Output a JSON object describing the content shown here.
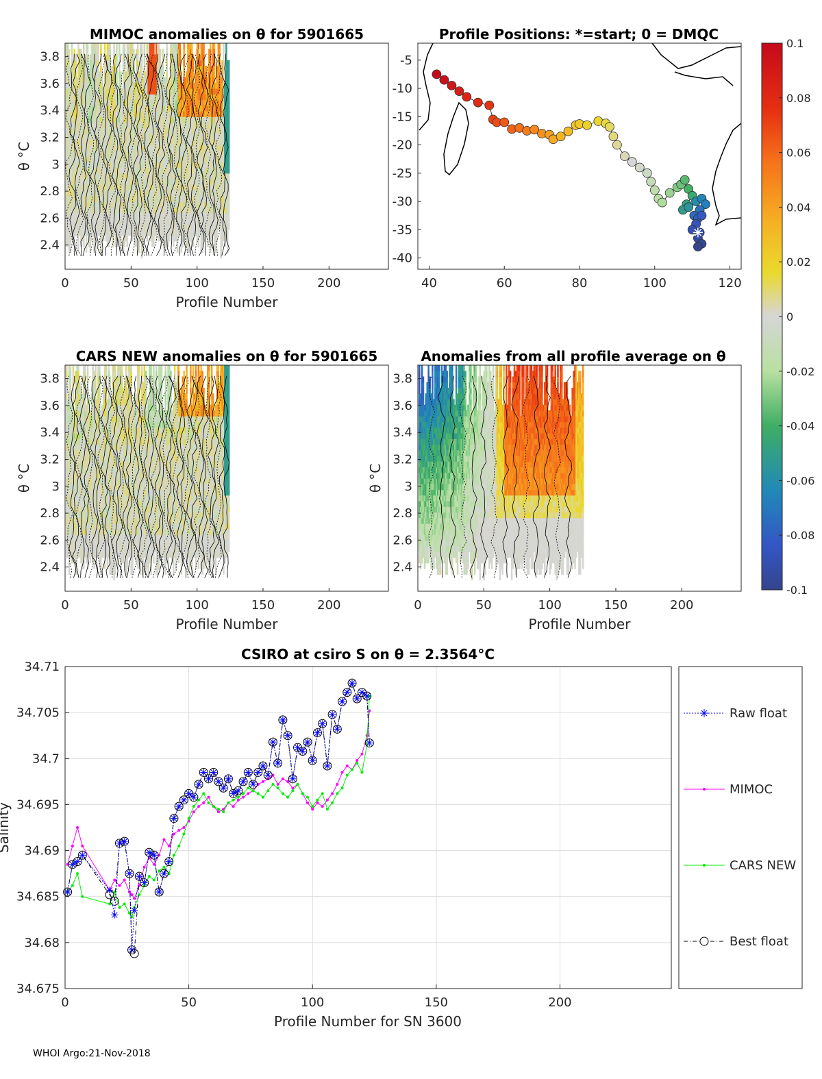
{
  "footer": "WHOI Argo:21-Nov-2018",
  "panels": {
    "mimoc": {
      "title": "MIMOC anomalies on θ  for 5901665",
      "ylabel": "θ °C",
      "xlabel": "Profile Number"
    },
    "positions": {
      "title": "Profile Positions: *=start; 0 = DMQC"
    },
    "cars": {
      "title": "CARS NEW anomalies on θ for 5901665",
      "ylabel": "θ °C",
      "xlabel": "Profile Number"
    },
    "avg": {
      "title": "Anomalies from all profile average on θ",
      "ylabel": "θ °C",
      "xlabel": "Profile Number"
    },
    "salinity": {
      "title": "CSIRO at csiro S on θ = 2.3564°C",
      "xlabel": "Profile Number for SN 3600",
      "ylabel": "Salinity"
    }
  },
  "colorbar": {
    "ticks": [
      "0.1",
      "0.08",
      "0.06",
      "0.04",
      "0.02",
      "0",
      "-0.02",
      "-0.04",
      "-0.06",
      "-0.08",
      "-0.1"
    ],
    "range": [
      -0.1,
      0.1
    ]
  },
  "chart_data": [
    {
      "type": "heatmap",
      "title": "MIMOC anomalies on θ  for 5901665",
      "xlabel": "Profile Number",
      "ylabel": "θ °C",
      "xlim": [
        0,
        245
      ],
      "ylim": [
        2.22,
        3.9
      ],
      "xticks": [
        "0",
        "50",
        "100",
        "150",
        "200"
      ],
      "yticks": [
        "2.4",
        "2.6",
        "2.8",
        "3",
        "3.2",
        "3.4",
        "3.6",
        "3.8"
      ]
    },
    {
      "type": "scatter",
      "title": "Profile Positions: *=start; 0 = DMQC",
      "xlim": [
        37,
        123
      ],
      "ylim": [
        -42,
        -2
      ],
      "xticks": [
        "40",
        "60",
        "80",
        "100",
        "120"
      ],
      "yticks": [
        "-5",
        "-10",
        "-15",
        "-20",
        "-25",
        "-30",
        "-35",
        "-40"
      ],
      "start": [
        111.5,
        -35.5
      ],
      "track": [
        [
          42,
          -7.5
        ],
        [
          44,
          -8.5
        ],
        [
          46,
          -9.5
        ],
        [
          48,
          -10.5
        ],
        [
          50,
          -11.5
        ],
        [
          53,
          -12.5
        ],
        [
          56,
          -13
        ],
        [
          57,
          -15.5
        ],
        [
          58,
          -16
        ],
        [
          60,
          -16
        ],
        [
          62,
          -17.2
        ],
        [
          64,
          -17
        ],
        [
          66,
          -17.5
        ],
        [
          68,
          -17.3
        ],
        [
          70,
          -18
        ],
        [
          72,
          -18.2
        ],
        [
          73,
          -19
        ],
        [
          75,
          -18.5
        ],
        [
          77,
          -17.6
        ],
        [
          79,
          -16.5
        ],
        [
          80,
          -16.3
        ],
        [
          82,
          -16.5
        ],
        [
          85,
          -15.8
        ],
        [
          87,
          -16.2
        ],
        [
          88,
          -16.8
        ],
        [
          89,
          -18.5
        ],
        [
          90,
          -20
        ],
        [
          92,
          -22
        ],
        [
          94,
          -23
        ],
        [
          96,
          -24
        ],
        [
          98,
          -25
        ],
        [
          99,
          -26.5
        ],
        [
          100,
          -28
        ],
        [
          101,
          -29.5
        ],
        [
          102,
          -30.2
        ],
        [
          104,
          -28.5
        ],
        [
          106,
          -27.5
        ],
        [
          107,
          -27
        ],
        [
          108,
          -26.2
        ],
        [
          109,
          -27.8
        ],
        [
          110,
          -29
        ],
        [
          108.5,
          -30.5
        ],
        [
          107.5,
          -31.5
        ],
        [
          109,
          -31
        ],
        [
          111,
          -30
        ],
        [
          112.5,
          -29.5
        ],
        [
          113.5,
          -30.5
        ],
        [
          112,
          -31.5
        ],
        [
          110.5,
          -32.5
        ],
        [
          111.5,
          -33
        ],
        [
          112.5,
          -32.5
        ],
        [
          111,
          -34
        ],
        [
          110,
          -35
        ],
        [
          112,
          -35.5
        ],
        [
          111.5,
          -36.5
        ],
        [
          112.5,
          -37.5
        ],
        [
          111.5,
          -38
        ]
      ]
    },
    {
      "type": "heatmap",
      "title": "CARS NEW anomalies on θ for 5901665",
      "xlabel": "Profile Number",
      "ylabel": "θ °C",
      "xlim": [
        0,
        245
      ],
      "ylim": [
        2.22,
        3.9
      ],
      "xticks": [
        "0",
        "50",
        "100",
        "150",
        "200"
      ],
      "yticks": [
        "2.4",
        "2.6",
        "2.8",
        "3",
        "3.2",
        "3.4",
        "3.6",
        "3.8"
      ]
    },
    {
      "type": "heatmap",
      "title": "Anomalies from all profile average on θ",
      "xlabel": "Profile Number",
      "ylabel": "θ °C",
      "xlim": [
        0,
        245
      ],
      "ylim": [
        2.22,
        3.9
      ],
      "xticks": [
        "0",
        "50",
        "100",
        "150",
        "200"
      ],
      "yticks": [
        "2.4",
        "2.6",
        "2.8",
        "3",
        "3.2",
        "3.4",
        "3.6",
        "3.8"
      ]
    },
    {
      "type": "line",
      "title": "CSIRO at csiro S on θ = 2.3564°C",
      "xlabel": "Profile Number for SN 3600",
      "ylabel": "Salinity",
      "xlim": [
        0,
        245
      ],
      "ylim": [
        34.675,
        34.71
      ],
      "xticks": [
        "0",
        "50",
        "100",
        "150",
        "200"
      ],
      "yticks": [
        "34.675",
        "34.68",
        "34.685",
        "34.69",
        "34.695",
        "34.7",
        "34.705",
        "34.71"
      ],
      "x": [
        1,
        3,
        5,
        7,
        18,
        20,
        22,
        24,
        26,
        27,
        28,
        30,
        32,
        34,
        36,
        38,
        40,
        42,
        44,
        46,
        48,
        50,
        52,
        54,
        56,
        58,
        60,
        62,
        64,
        66,
        68,
        70,
        72,
        74,
        76,
        78,
        80,
        82,
        84,
        86,
        88,
        90,
        92,
        94,
        96,
        98,
        100,
        102,
        104,
        106,
        108,
        110,
        112,
        114,
        116,
        118,
        120,
        122,
        123
      ],
      "series": [
        {
          "name": "Raw float",
          "color": "#0000ff",
          "values": [
            34.6855,
            34.6885,
            34.6888,
            34.6895,
            34.6857,
            34.683,
            34.6908,
            34.691,
            34.6875,
            34.6792,
            34.6835,
            34.6872,
            34.6865,
            34.6898,
            34.6895,
            34.6855,
            34.6875,
            34.6888,
            34.6935,
            34.6948,
            34.6955,
            34.6962,
            34.6958,
            34.6972,
            34.6985,
            34.6978,
            34.6985,
            34.6975,
            34.6968,
            34.6978,
            34.6962,
            34.6965,
            34.6975,
            34.6985,
            34.6972,
            34.6985,
            34.6992,
            34.6982,
            34.7018,
            34.6995,
            34.7042,
            34.7025,
            34.6978,
            34.7012,
            34.7008,
            34.7018,
            34.6998,
            34.7028,
            34.7038,
            34.6992,
            34.7048,
            34.7032,
            34.7062,
            34.7072,
            34.7082,
            34.7065,
            34.7072,
            34.7068,
            34.7017
          ]
        },
        {
          "name": "MIMOC",
          "color": "#ff00ff",
          "values": [
            34.6885,
            34.6905,
            34.6925,
            34.6905,
            34.6857,
            34.6868,
            34.6862,
            34.6868,
            34.6855,
            34.6852,
            34.6848,
            34.6862,
            34.6882,
            34.6892,
            34.6885,
            34.6895,
            34.6912,
            34.6905,
            34.6918,
            34.6922,
            34.6925,
            34.6932,
            34.6942,
            34.6948,
            34.6952,
            34.6958,
            34.6948,
            34.6942,
            34.6945,
            34.6952,
            34.6948,
            34.6955,
            34.6958,
            34.6962,
            34.6965,
            34.6972,
            34.6975,
            34.6978,
            34.6982,
            34.6972,
            34.6978,
            34.6975,
            34.6968,
            34.6972,
            34.6962,
            34.6952,
            34.6945,
            34.6952,
            34.6948,
            34.6955,
            34.6962,
            34.6972,
            34.6985,
            34.6992,
            34.6988,
            34.6998,
            34.7005,
            34.7025,
            34.7052
          ]
        },
        {
          "name": "CARS NEW",
          "color": "#00ee00",
          "values": [
            34.6855,
            34.6862,
            34.6875,
            34.685,
            34.6842,
            34.6855,
            34.6838,
            34.6842,
            34.6832,
            34.6828,
            34.6838,
            34.6852,
            34.6862,
            34.6872,
            34.6868,
            34.6878,
            34.6882,
            34.6875,
            34.6895,
            34.6905,
            34.6918,
            34.6935,
            34.6948,
            34.6955,
            34.6962,
            34.6952,
            34.6948,
            34.6945,
            34.6942,
            34.6952,
            34.6955,
            34.6958,
            34.6962,
            34.6968,
            34.6965,
            34.6962,
            34.6958,
            34.6965,
            34.6972,
            34.6968,
            34.6962,
            34.6958,
            34.6965,
            34.6972,
            34.6962,
            34.6958,
            34.6948,
            34.6955,
            34.6962,
            34.6945,
            34.6952,
            34.6962,
            34.6968,
            34.6982,
            34.6988,
            34.6995,
            34.6985,
            34.7015,
            34.7068
          ]
        },
        {
          "name": "Best float",
          "color": "#000000",
          "values": [
            34.6855,
            34.6885,
            34.6888,
            34.6895,
            34.6852,
            34.6845,
            34.6908,
            34.691,
            34.6875,
            34.6792,
            34.6788,
            34.6872,
            34.6865,
            34.6898,
            34.6895,
            34.6855,
            34.6875,
            34.6888,
            34.6935,
            34.6948,
            34.6955,
            34.6962,
            34.6958,
            34.6972,
            34.6985,
            34.6978,
            34.6985,
            34.6975,
            34.6968,
            34.6978,
            34.6962,
            34.6965,
            34.6975,
            34.6985,
            34.6972,
            34.6985,
            34.6992,
            34.6982,
            34.7018,
            34.6995,
            34.7042,
            34.7025,
            34.6978,
            34.7012,
            34.7008,
            34.7018,
            34.6998,
            34.7028,
            34.7038,
            34.6992,
            34.7048,
            34.7032,
            34.7062,
            34.7072,
            34.7082,
            34.7065,
            34.7072,
            34.7068,
            34.7017
          ]
        }
      ]
    }
  ]
}
